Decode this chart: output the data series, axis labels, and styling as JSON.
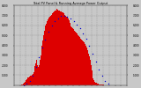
{
  "title": "Total PV Panel & Running Average Power Output",
  "bg_color": "#c8c8c8",
  "plot_bg_color": "#c8c8c8",
  "bar_color": "#dd0000",
  "avg_color": "#0000cc",
  "grid_color": "#888888",
  "title_color": "#000000",
  "tick_color": "#000000",
  "ylim": [
    0,
    8000
  ],
  "xlim": [
    0,
    144
  ],
  "y_ticks": [
    1000,
    2000,
    3000,
    4000,
    5000,
    6000,
    7000,
    8000
  ],
  "y_tick_labels": [
    "1,000",
    "2,000",
    "3,000",
    "4,000",
    "5,000",
    "6,000",
    "7,000",
    "8,000"
  ],
  "bar_heights": [
    0,
    0,
    0,
    0,
    0,
    0,
    0,
    0,
    0,
    0,
    50,
    80,
    120,
    200,
    350,
    500,
    600,
    700,
    750,
    800,
    850,
    900,
    950,
    1000,
    1100,
    1300,
    1600,
    1900,
    2200,
    2500,
    2000,
    1800,
    2000,
    2500,
    3000,
    3500,
    4000,
    4500,
    5000,
    5500,
    6000,
    6200,
    6400,
    6600,
    6700,
    6800,
    6900,
    7000,
    7100,
    7200,
    7300,
    7400,
    7500,
    7550,
    7600,
    7650,
    7600,
    7550,
    7500,
    7450,
    7400,
    7350,
    7300,
    7250,
    7200,
    7100,
    7000,
    6900,
    6800,
    6700,
    6500,
    6300,
    6100,
    5900,
    5800,
    5700,
    5600,
    5500,
    5400,
    5300,
    5200,
    5100,
    5000,
    4900,
    4800,
    4700,
    4600,
    4500,
    4400,
    4300,
    4200,
    4100,
    4000,
    3800,
    3500,
    3200,
    2900,
    2500,
    2000,
    1500,
    1000,
    700,
    500,
    350,
    250,
    200,
    150,
    100,
    80,
    60,
    40,
    30,
    20,
    10,
    5,
    0,
    0,
    0,
    0,
    0,
    0,
    0,
    0,
    0,
    0,
    0,
    0,
    0,
    0,
    0,
    0,
    0,
    0,
    0,
    0,
    0,
    0,
    0,
    0,
    0,
    0,
    0,
    0,
    0
  ],
  "avg_x": [
    12,
    16,
    20,
    24,
    28,
    32,
    36,
    40,
    44,
    48,
    52,
    56,
    60,
    64,
    68,
    72,
    76,
    80,
    84,
    88,
    92,
    96,
    100,
    104,
    108,
    112,
    116,
    120
  ],
  "avg_y": [
    0,
    100,
    400,
    900,
    1800,
    2800,
    3800,
    4600,
    5400,
    6000,
    6400,
    6700,
    7000,
    7000,
    6900,
    6700,
    6400,
    6100,
    5700,
    5200,
    4700,
    4000,
    3200,
    2400,
    1600,
    900,
    400,
    100
  ]
}
